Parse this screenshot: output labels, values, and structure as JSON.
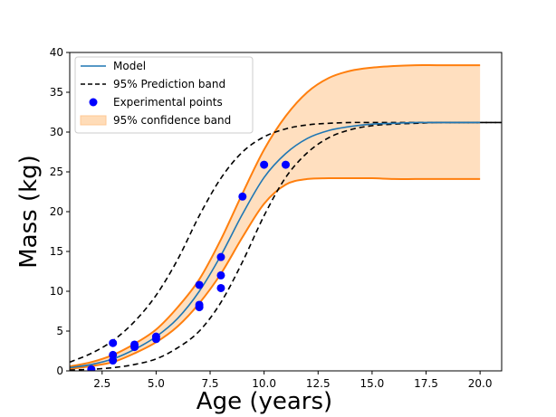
{
  "chart_data": {
    "type": "line",
    "xlabel": "Age (years)",
    "ylabel": "Mass (kg)",
    "xlim": [
      1.0,
      21.0
    ],
    "ylim": [
      0,
      40
    ],
    "xticks": [
      2.5,
      5.0,
      7.5,
      10.0,
      12.5,
      15.0,
      17.5,
      20.0
    ],
    "xtick_labels": [
      "2.5",
      "5.0",
      "7.5",
      "10.0",
      "12.5",
      "15.0",
      "17.5",
      "20.0"
    ],
    "yticks": [
      0,
      5,
      10,
      15,
      20,
      25,
      30,
      35,
      40
    ],
    "ytick_labels": [
      "0",
      "5",
      "10",
      "15",
      "20",
      "25",
      "30",
      "35",
      "40"
    ],
    "grid": false,
    "legend": {
      "placement": "top-left",
      "entries": [
        "Model",
        "95% Prediction band",
        "Experimental points",
        "95% confidence band"
      ]
    },
    "colors": {
      "model": "#1f77b4",
      "prediction": "#000000",
      "points": "#0000ff",
      "confidence_line": "#ff7f0e",
      "confidence_fill": "#ffdcb8"
    },
    "series": [
      {
        "name": "Model",
        "x": [
          1,
          2,
          3,
          4,
          5,
          6,
          7,
          8,
          9,
          10,
          11,
          12,
          13,
          14,
          15,
          16,
          17,
          18,
          19,
          20
        ],
        "y": [
          0.4,
          0.8,
          1.5,
          2.7,
          4.3,
          6.6,
          10.0,
          14.5,
          19.7,
          24.3,
          27.3,
          29.2,
          30.2,
          30.7,
          31.0,
          31.1,
          31.2,
          31.2,
          31.2,
          31.2
        ]
      },
      {
        "name": "95% Prediction band",
        "upper": {
          "x": [
            1,
            2,
            3,
            4,
            5,
            6,
            7,
            8,
            9,
            10,
            11,
            12,
            13,
            14,
            15,
            17,
            20,
            21
          ],
          "y": [
            1.1,
            2.2,
            3.8,
            6.2,
            9.5,
            14.0,
            19.5,
            24.2,
            27.5,
            29.4,
            30.4,
            30.9,
            31.1,
            31.2,
            31.2,
            31.2,
            31.2,
            31.2
          ]
        },
        "lower": {
          "x": [
            1,
            2,
            3,
            4,
            5,
            6,
            7,
            8,
            9,
            10,
            11,
            12,
            13,
            14,
            15,
            16,
            17,
            18,
            19,
            20,
            21
          ],
          "y": [
            0.1,
            0.2,
            0.4,
            0.8,
            1.5,
            2.9,
            5.0,
            8.6,
            13.7,
            19.5,
            24.3,
            27.4,
            29.3,
            30.3,
            30.8,
            31.0,
            31.1,
            31.2,
            31.2,
            31.2,
            31.2
          ]
        }
      },
      {
        "name": "Experimental points",
        "points": [
          [
            2,
            0.2
          ],
          [
            3,
            1.3
          ],
          [
            3,
            2.0
          ],
          [
            3,
            3.5
          ],
          [
            4,
            3.0
          ],
          [
            4,
            3.3
          ],
          [
            5,
            4.0
          ],
          [
            5,
            4.3
          ],
          [
            7,
            8.0
          ],
          [
            7,
            8.3
          ],
          [
            7,
            10.8
          ],
          [
            8,
            10.4
          ],
          [
            8,
            12.0
          ],
          [
            8,
            14.3
          ],
          [
            9,
            21.9
          ],
          [
            10,
            25.9
          ],
          [
            11,
            25.9
          ]
        ]
      },
      {
        "name": "95% confidence band",
        "x": [
          1,
          2,
          3,
          4,
          5,
          6,
          7,
          8,
          9,
          10,
          11,
          12,
          13,
          14,
          15,
          16,
          17,
          18,
          19,
          20
        ],
        "upper": [
          0.55,
          1.1,
          2.0,
          3.4,
          5.2,
          8.0,
          11.5,
          16.5,
          22.3,
          27.8,
          32.0,
          35.0,
          36.8,
          37.7,
          38.1,
          38.3,
          38.4,
          38.4,
          38.4,
          38.4
        ],
        "lower": [
          0.25,
          0.6,
          1.1,
          2.2,
          3.6,
          5.6,
          8.5,
          12.2,
          16.8,
          21.0,
          23.4,
          24.1,
          24.2,
          24.2,
          24.2,
          24.1,
          24.1,
          24.1,
          24.1,
          24.1
        ]
      }
    ]
  }
}
